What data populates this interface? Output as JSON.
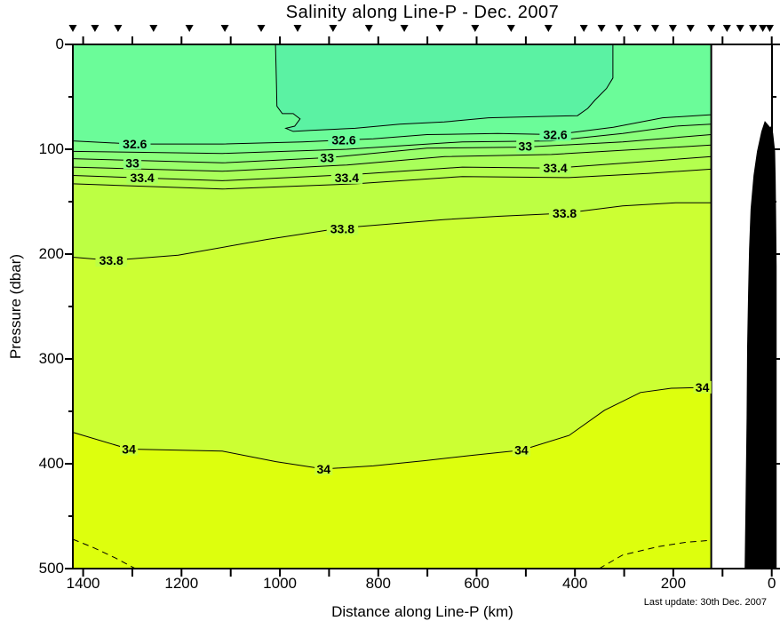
{
  "last_update": "Last update: 30th Dec. 2007",
  "colors": {
    "background": "#FFFFFF",
    "frame": "#000000",
    "contour_line": "#000000",
    "station_marker": "#000000",
    "land": "#000000"
  },
  "chart_data": {
    "type": "heatmap",
    "subtype": "filled-contour-ocean-section",
    "title": "Salinity along Line-P - Dec. 2007",
    "xlabel": "Distance along Line-P (km)",
    "ylabel": "Pressure (dbar)",
    "x_axis": {
      "reversed": true,
      "range_km": [
        1421,
        -12
      ],
      "tick_labels": [
        "1400",
        "1200",
        "1000",
        "800",
        "600",
        "400",
        "200",
        "0"
      ],
      "tick_values": [
        1400,
        1200,
        1000,
        800,
        600,
        400,
        200,
        0
      ],
      "minor_tick_values": [
        1400,
        1300,
        1200,
        1100,
        1000,
        900,
        800,
        700,
        600,
        500,
        400,
        300,
        200,
        100,
        0
      ]
    },
    "y_axis": {
      "range_dbar": [
        0,
        500
      ],
      "tick_labels": [
        "0",
        "100",
        "200",
        "300",
        "400",
        "500"
      ],
      "tick_values": [
        0,
        100,
        200,
        300,
        400,
        500
      ],
      "minor_tick_values": [
        50,
        150,
        250,
        350,
        450
      ]
    },
    "contour_interval": 0.2,
    "surface_fill": "#6BFC99",
    "data_edge_km": 123,
    "fresh_patch": {
      "salinity_max": 32.4,
      "fill": "#5BF2A3",
      "points": [
        [
          1009,
          0
        ],
        [
          1007,
          38
        ],
        [
          1006,
          59
        ],
        [
          995,
          66
        ],
        [
          973,
          66
        ],
        [
          959,
          71
        ],
        [
          970,
          78
        ],
        [
          988,
          80
        ],
        [
          973,
          83
        ],
        [
          937,
          82
        ],
        [
          847,
          80
        ],
        [
          756,
          76
        ],
        [
          666,
          74
        ],
        [
          576,
          70
        ],
        [
          486,
          69
        ],
        [
          395,
          68
        ],
        [
          374,
          61
        ],
        [
          359,
          53
        ],
        [
          336,
          42
        ],
        [
          323,
          32
        ],
        [
          323,
          0
        ]
      ]
    },
    "isolines": [
      {
        "salinity": 32.6,
        "label_text": "32.6",
        "style": "solid",
        "fill_below": "#7CFF8B",
        "label_bg": "#6BFC99",
        "points": [
          [
            1421,
            92
          ],
          [
            1298,
            95
          ],
          [
            1117,
            95
          ],
          [
            954,
            93
          ],
          [
            810,
            90
          ],
          [
            701,
            86
          ],
          [
            557,
            85
          ],
          [
            439,
            86
          ],
          [
            322,
            79
          ],
          [
            222,
            70
          ],
          [
            123,
            67
          ]
        ],
        "labels": [
          [
            1295,
            95
          ],
          [
            870,
            91
          ],
          [
            440,
            86
          ]
        ]
      },
      {
        "salinity": 32.8,
        "label_text": null,
        "style": "solid",
        "fill_below": "#8BFF7B",
        "label_bg": null,
        "points": [
          [
            1421,
            102
          ],
          [
            1117,
            104
          ],
          [
            864,
            100
          ],
          [
            629,
            93
          ],
          [
            448,
            92
          ],
          [
            303,
            85
          ],
          [
            195,
            78
          ],
          [
            123,
            76
          ]
        ],
        "labels": []
      },
      {
        "salinity": 33.0,
        "label_text": "33",
        "style": "solid",
        "fill_below": "#9AFF6B",
        "label_bg": "#8BFF7B",
        "points": [
          [
            1421,
            109
          ],
          [
            1117,
            113
          ],
          [
            900,
            108
          ],
          [
            701,
            99
          ],
          [
            502,
            98
          ],
          [
            303,
            93
          ],
          [
            123,
            86
          ]
        ],
        "labels": [
          [
            1300,
            113
          ],
          [
            904,
            108
          ],
          [
            501,
            97
          ]
        ]
      },
      {
        "salinity": 33.2,
        "label_text": null,
        "style": "solid",
        "fill_below": "#A9FF5A",
        "label_bg": null,
        "points": [
          [
            1421,
            117
          ],
          [
            1117,
            121
          ],
          [
            864,
            115
          ],
          [
            665,
            107
          ],
          [
            448,
            105
          ],
          [
            267,
            100
          ],
          [
            123,
            96
          ]
        ],
        "labels": []
      },
      {
        "salinity": 33.4,
        "label_text": "33.4",
        "style": "solid",
        "fill_below": "#B4FF4E",
        "label_bg": "#A9FF5A",
        "points": [
          [
            1421,
            125
          ],
          [
            1117,
            130
          ],
          [
            846,
            124
          ],
          [
            629,
            117
          ],
          [
            439,
            118
          ],
          [
            267,
            112
          ],
          [
            123,
            107
          ]
        ],
        "labels": [
          [
            1280,
            127
          ],
          [
            864,
            127
          ],
          [
            440,
            118
          ]
        ]
      },
      {
        "salinity": 33.6,
        "label_text": null,
        "style": "solid",
        "fill_below": "#BDFF43",
        "label_bg": null,
        "points": [
          [
            1421,
            133
          ],
          [
            1117,
            138
          ],
          [
            846,
            133
          ],
          [
            629,
            126
          ],
          [
            412,
            127
          ],
          [
            249,
            123
          ],
          [
            123,
            119
          ]
        ],
        "labels": []
      },
      {
        "salinity": 33.8,
        "label_text": "33.8",
        "style": "solid",
        "fill_below": "#CCFF33",
        "label_bg": "#BDFF43",
        "points": [
          [
            1421,
            203
          ],
          [
            1343,
            206
          ],
          [
            1207,
            201
          ],
          [
            1026,
            186
          ],
          [
            873,
            175
          ],
          [
            665,
            167
          ],
          [
            557,
            164
          ],
          [
            421,
            161
          ],
          [
            303,
            154
          ],
          [
            195,
            151
          ],
          [
            123,
            151
          ]
        ],
        "labels": [
          [
            1343,
            206
          ],
          [
            873,
            176
          ],
          [
            421,
            161
          ]
        ]
      },
      {
        "salinity": 34.0,
        "label_text": "34",
        "style": "solid",
        "fill_below": "#DDFF0D",
        "label_bg": "#CCFF33",
        "points": [
          [
            1421,
            370
          ],
          [
            1307,
            386
          ],
          [
            1117,
            388
          ],
          [
            1008,
            398
          ],
          [
            911,
            405
          ],
          [
            810,
            402
          ],
          [
            705,
            397
          ],
          [
            611,
            392
          ],
          [
            509,
            387
          ],
          [
            412,
            373
          ],
          [
            340,
            349
          ],
          [
            267,
            332
          ],
          [
            204,
            328
          ],
          [
            123,
            327
          ]
        ],
        "labels": [
          [
            1307,
            386
          ],
          [
            911,
            405
          ],
          [
            509,
            387
          ],
          [
            141,
            327
          ]
        ]
      },
      {
        "salinity": 34.2,
        "label_text": null,
        "style": "dashed",
        "fill_below": null,
        "label_bg": null,
        "points": [
          [
            1421,
            472
          ],
          [
            1379,
            480
          ],
          [
            1334,
            490
          ],
          [
            1294,
            500
          ]
        ],
        "labels": []
      },
      {
        "salinity": 34.2,
        "label_text": null,
        "style": "dashed",
        "fill_below": null,
        "label_bg": null,
        "points": [
          [
            351,
            500
          ],
          [
            303,
            487
          ],
          [
            230,
            479
          ],
          [
            176,
            475
          ],
          [
            123,
            473
          ]
        ],
        "labels": []
      }
    ],
    "bathymetry": {
      "fill": "#000000",
      "points": [
        [
          14,
          73
        ],
        [
          21,
          83
        ],
        [
          30,
          102
        ],
        [
          37,
          125
        ],
        [
          43,
          157
        ],
        [
          46,
          195
        ],
        [
          48,
          237
        ],
        [
          50,
          288
        ],
        [
          51,
          356
        ],
        [
          53,
          432
        ],
        [
          55,
          500
        ],
        [
          -10,
          500
        ],
        [
          -10,
          212
        ],
        [
          -9,
          161
        ],
        [
          -8,
          127
        ],
        [
          -7,
          102
        ],
        [
          -3,
          85
        ],
        [
          0,
          77
        ],
        [
          3,
          79
        ]
      ]
    },
    "stations_km": [
      1421,
      1376,
      1329,
      1257,
      1184,
      1112,
      1038,
      964,
      892,
      819,
      747,
      675,
      603,
      530,
      454,
      382,
      346,
      310,
      273,
      237,
      201,
      165,
      123,
      91,
      64,
      38,
      18,
      4
    ]
  }
}
